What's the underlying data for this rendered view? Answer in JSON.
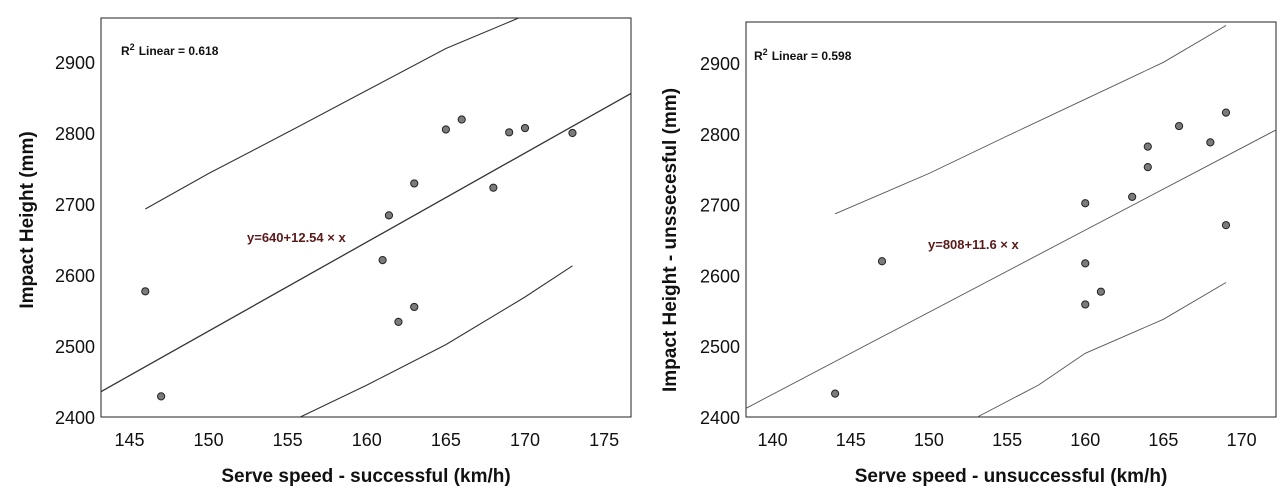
{
  "chart_data": [
    {
      "type": "scatter",
      "xlabel": "Serve speed - successful (km/h)",
      "ylabel": "Impact Height (mm)",
      "xlim": [
        143.2,
        176.7
      ],
      "ylim": [
        2400,
        2962
      ],
      "xticks": [
        145,
        150,
        155,
        160,
        165,
        170,
        175
      ],
      "yticks": [
        2400,
        2500,
        2600,
        2700,
        2800,
        2900
      ],
      "r2_label": "Linear = 0.618",
      "r2_prefix": "R",
      "r2_sup": "2",
      "equation": "y=640+12.54 × x",
      "fit": {
        "intercept": 640,
        "slope": 12.54
      },
      "ci_upper": [
        [
          146,
          2693
        ],
        [
          150,
          2743
        ],
        [
          155,
          2801
        ],
        [
          160,
          2860
        ],
        [
          165,
          2919
        ],
        [
          169.6,
          2962
        ]
      ],
      "ci_lower": [
        [
          155.8,
          2400
        ],
        [
          160,
          2445
        ],
        [
          165,
          2502
        ],
        [
          170,
          2569
        ],
        [
          173,
          2613
        ]
      ],
      "points": [
        [
          146,
          2577
        ],
        [
          147,
          2429
        ],
        [
          161,
          2621
        ],
        [
          161.4,
          2684
        ],
        [
          162,
          2534
        ],
        [
          163,
          2555
        ],
        [
          163,
          2729
        ],
        [
          165,
          2805
        ],
        [
          166,
          2819
        ],
        [
          168,
          2723
        ],
        [
          169,
          2801
        ],
        [
          170,
          2807
        ],
        [
          173,
          2800
        ]
      ]
    },
    {
      "type": "scatter",
      "xlabel": "Serve speed - unsuccessful (km/h)",
      "ylabel": "Impact Height - unssecesful (mm)",
      "xlim": [
        138.3,
        172.2
      ],
      "ylim": [
        2400,
        2958
      ],
      "xticks": [
        140,
        145,
        150,
        155,
        160,
        165,
        170
      ],
      "yticks": [
        2400,
        2500,
        2600,
        2700,
        2800,
        2900
      ],
      "r2_label": "Linear = 0.598",
      "r2_prefix": "R",
      "r2_sup": "2",
      "equation": "y=808+11.6 × x",
      "fit": {
        "intercept": 808,
        "slope": 11.6
      },
      "ci_upper": [
        [
          144,
          2687
        ],
        [
          150,
          2744
        ],
        [
          155,
          2797
        ],
        [
          160,
          2849
        ],
        [
          165,
          2901
        ],
        [
          169,
          2953
        ]
      ],
      "ci_lower": [
        [
          153.1,
          2400
        ],
        [
          157,
          2445
        ],
        [
          160,
          2490
        ],
        [
          165,
          2538
        ],
        [
          169,
          2590
        ]
      ],
      "points": [
        [
          144,
          2433
        ],
        [
          147,
          2620
        ],
        [
          160,
          2559
        ],
        [
          160,
          2617
        ],
        [
          160,
          2702
        ],
        [
          161,
          2577
        ],
        [
          163,
          2711
        ],
        [
          164,
          2753
        ],
        [
          164,
          2782
        ],
        [
          166,
          2811
        ],
        [
          168,
          2788
        ],
        [
          169,
          2830
        ],
        [
          169,
          2671
        ]
      ]
    }
  ]
}
